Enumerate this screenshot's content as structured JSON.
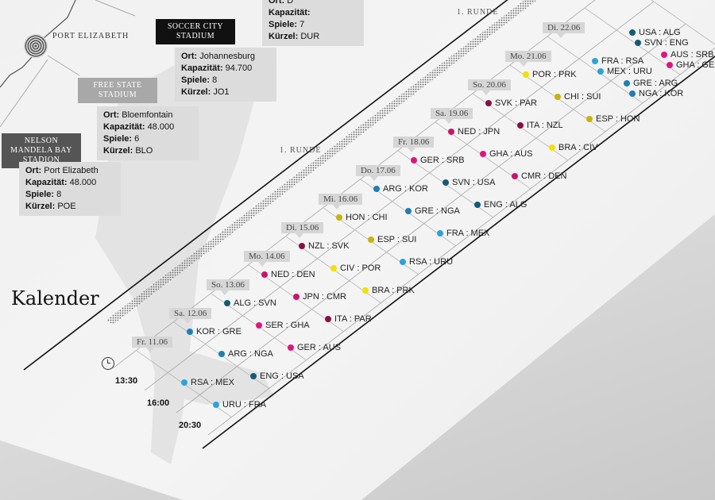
{
  "map": {
    "city": "PORT ELIZABETH"
  },
  "stadiums": [
    {
      "name": "Nelson Mandela Bay Stadion",
      "ort": "Ort:",
      "ort_value": "Port Elizabeth",
      "kap": "Kapazität:",
      "kap_value": "48.000",
      "spiele": "Spiele:",
      "spiele_value": "8",
      "kuerzel": "Kürzel:",
      "kuerzel_value": "POE",
      "head_color": "#555555"
    },
    {
      "name": "Free State Stadium",
      "ort": "Ort:",
      "ort_value": "Bloemfontain",
      "kap": "Kapazität:",
      "kap_value": "48.000",
      "spiele": "Spiele:",
      "spiele_value": "6",
      "kuerzel": "Kürzel:",
      "kuerzel_value": "BLO",
      "head_color": "#a8a8a8"
    },
    {
      "name": "Soccer City Stadium",
      "ort": "Ort:",
      "ort_value": "Johannesburg",
      "kap": "Kapazität:",
      "kap_value": "94.700",
      "spiele": "Spiele:",
      "spiele_value": "8",
      "kuerzel": "Kürzel:",
      "kuerzel_value": "JO1",
      "head_color": "#111111"
    },
    {
      "name": "",
      "ort": "Ort:",
      "ort_value": "D",
      "kap": "Kapazität:",
      "kap_value": "",
      "spiele": "Spiele:",
      "spiele_value": "7",
      "kuerzel": "Kürzel:",
      "kuerzel_value": "DUR",
      "head_color": "#555555"
    }
  ],
  "calendar": {
    "title": "Kalender",
    "rounds": [
      "1. RUNDE",
      "1. RUNDE"
    ],
    "times": [
      "13:30",
      "16:00",
      "20:30"
    ],
    "clock_icon": "clock-icon",
    "group_colors": {
      "A": "#2aa3dc",
      "B": "#1e7fb4",
      "C": "#145a78",
      "D": "#e0147f",
      "E": "#c8146a",
      "F": "#8c0f3f",
      "G": "#f2e100",
      "H": "#c9b20a"
    },
    "days": [
      {
        "label": "Fr. 11.06",
        "slots": [
          null,
          [
            {
              "teams": "RSA : MEX",
              "group": "A"
            }
          ],
          [
            {
              "teams": "URU : FRA",
              "group": "A"
            }
          ]
        ]
      },
      {
        "label": "Sa. 12.06",
        "slots": [
          [
            {
              "teams": "KOR : GRE",
              "group": "B"
            }
          ],
          [
            {
              "teams": "ARG : NGA",
              "group": "B"
            }
          ],
          [
            {
              "teams": "ENG : USA",
              "group": "C"
            }
          ]
        ]
      },
      {
        "label": "So. 13.06",
        "slots": [
          [
            {
              "teams": "ALG : SVN",
              "group": "C"
            }
          ],
          [
            {
              "teams": "SER : GHA",
              "group": "D"
            }
          ],
          [
            {
              "teams": "GER : AUS",
              "group": "D"
            }
          ]
        ]
      },
      {
        "label": "Mo. 14.06",
        "slots": [
          [
            {
              "teams": "NED : DEN",
              "group": "E"
            }
          ],
          [
            {
              "teams": "JPN : CMR",
              "group": "E"
            }
          ],
          [
            {
              "teams": "ITA : PAR",
              "group": "F"
            }
          ]
        ]
      },
      {
        "label": "Di. 15.06",
        "slots": [
          [
            {
              "teams": "NZL : SVK",
              "group": "F"
            }
          ],
          [
            {
              "teams": "CIV : POR",
              "group": "G"
            }
          ],
          [
            {
              "teams": "BRA : PRK",
              "group": "G"
            }
          ]
        ]
      },
      {
        "label": "Mi. 16.06",
        "slots": [
          [
            {
              "teams": "HON : CHI",
              "group": "H"
            }
          ],
          [
            {
              "teams": "ESP : SUI",
              "group": "H"
            }
          ],
          [
            {
              "teams": "RSA : URU",
              "group": "A"
            }
          ]
        ]
      },
      {
        "label": "Do. 17.06",
        "slots": [
          [
            {
              "teams": "ARG : KOR",
              "group": "B"
            }
          ],
          [
            {
              "teams": "GRE : NGA",
              "group": "B"
            }
          ],
          [
            {
              "teams": "FRA : MEX",
              "group": "A"
            }
          ]
        ]
      },
      {
        "label": "Fr. 18.06",
        "slots": [
          [
            {
              "teams": "GER : SRB",
              "group": "D"
            }
          ],
          [
            {
              "teams": "SVN : USA",
              "group": "C"
            }
          ],
          [
            {
              "teams": "ENG : ALG",
              "group": "C"
            }
          ]
        ]
      },
      {
        "label": "Sa. 19.06",
        "slots": [
          [
            {
              "teams": "NED : JPN",
              "group": "E"
            }
          ],
          [
            {
              "teams": "GHA : AUS",
              "group": "D"
            }
          ],
          [
            {
              "teams": "CMR : DEN",
              "group": "E"
            }
          ]
        ]
      },
      {
        "label": "So. 20.06",
        "slots": [
          [
            {
              "teams": "SVK : PAR",
              "group": "F"
            }
          ],
          [
            {
              "teams": "ITA : NZL",
              "group": "F"
            }
          ],
          [
            {
              "teams": "BRA : CIV",
              "group": "G"
            }
          ]
        ]
      },
      {
        "label": "Mo. 21.06",
        "slots": [
          [
            {
              "teams": "POR : PRK",
              "group": "G"
            }
          ],
          [
            {
              "teams": "CHI : SUI",
              "group": "H"
            }
          ],
          [
            {
              "teams": "ESP : HON",
              "group": "H"
            }
          ]
        ]
      },
      {
        "label": "Di. 22.06",
        "slots": [
          null,
          [
            {
              "teams": "FRA : RSA",
              "group": "A"
            },
            {
              "teams": "MEX : URU",
              "group": "A"
            }
          ],
          [
            {
              "teams": "GRE : ARG",
              "group": "B"
            },
            {
              "teams": "NGA : KOR",
              "group": "B"
            }
          ]
        ]
      },
      {
        "slots": [
          null,
          [
            {
              "teams": "USA : ALG",
              "group": "C"
            },
            {
              "teams": "SVN : ENG",
              "group": "C"
            }
          ],
          [
            {
              "teams": "AUS : SRB",
              "group": "D"
            },
            {
              "teams": "GHA : GER",
              "group": "D"
            }
          ]
        ]
      }
    ]
  }
}
